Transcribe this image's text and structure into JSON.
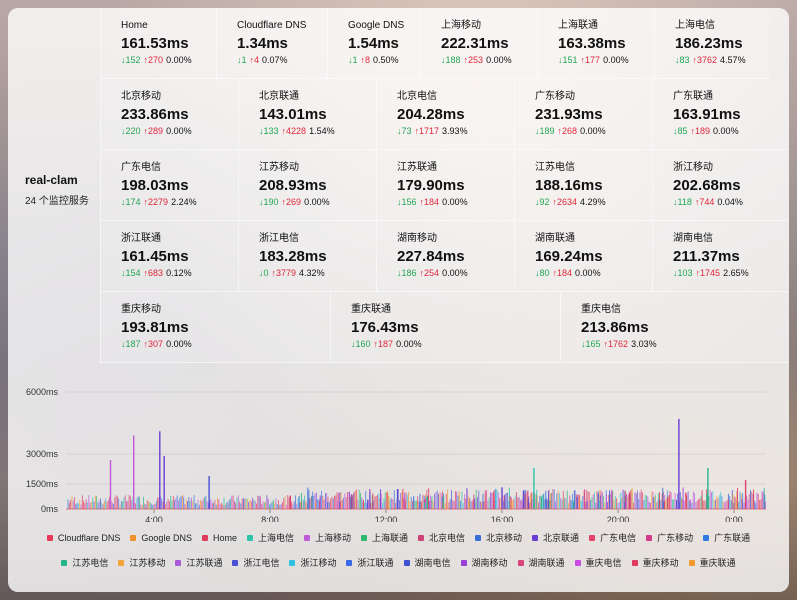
{
  "side": {
    "name": "real-clam",
    "count": "24 个监控服务"
  },
  "rows": [
    [
      {
        "label": "Home",
        "value": "161.53ms",
        "down": "↓152",
        "up": "↑270",
        "loss": "0.00%"
      },
      {
        "label": "Cloudflare DNS",
        "value": "1.34ms",
        "down": "↓1",
        "up": "↑4",
        "loss": "0.07%"
      },
      {
        "label": "Google DNS",
        "value": "1.54ms",
        "down": "↓1",
        "up": "↑8",
        "loss": "0.50%"
      },
      {
        "label": "上海移动",
        "value": "222.31ms",
        "down": "↓188",
        "up": "↑253",
        "loss": "0.00%"
      },
      {
        "label": "上海联通",
        "value": "163.38ms",
        "down": "↓151",
        "up": "↑177",
        "loss": "0.00%"
      },
      {
        "label": "上海电信",
        "value": "186.23ms",
        "down": "↓83",
        "up": "↑3762",
        "loss": "4.57%"
      }
    ],
    [
      {
        "label": "北京移动",
        "value": "233.86ms",
        "down": "↓220",
        "up": "↑289",
        "loss": "0.00%"
      },
      {
        "label": "北京联通",
        "value": "143.01ms",
        "down": "↓133",
        "up": "↑4228",
        "loss": "1.54%"
      },
      {
        "label": "北京电信",
        "value": "204.28ms",
        "down": "↓73",
        "up": "↑1717",
        "loss": "3.93%"
      },
      {
        "label": "广东移动",
        "value": "231.93ms",
        "down": "↓189",
        "up": "↑268",
        "loss": "0.00%"
      },
      {
        "label": "广东联通",
        "value": "163.91ms",
        "down": "↓85",
        "up": "↑189",
        "loss": "0.00%"
      }
    ],
    [
      {
        "label": "广东电信",
        "value": "198.03ms",
        "down": "↓174",
        "up": "↑2279",
        "loss": "2.24%"
      },
      {
        "label": "江苏移动",
        "value": "208.93ms",
        "down": "↓190",
        "up": "↑269",
        "loss": "0.00%"
      },
      {
        "label": "江苏联通",
        "value": "179.90ms",
        "down": "↓156",
        "up": "↑184",
        "loss": "0.00%"
      },
      {
        "label": "江苏电信",
        "value": "188.16ms",
        "down": "↓92",
        "up": "↑2634",
        "loss": "4.29%"
      },
      {
        "label": "浙江移动",
        "value": "202.68ms",
        "down": "↓118",
        "up": "↑744",
        "loss": "0.04%"
      }
    ],
    [
      {
        "label": "浙江联通",
        "value": "161.45ms",
        "down": "↓154",
        "up": "↑683",
        "loss": "0.12%"
      },
      {
        "label": "浙江电信",
        "value": "183.28ms",
        "down": "↓0",
        "up": "↑3779",
        "loss": "4.32%"
      },
      {
        "label": "湖南移动",
        "value": "227.84ms",
        "down": "↓186",
        "up": "↑254",
        "loss": "0.00%"
      },
      {
        "label": "湖南联通",
        "value": "169.24ms",
        "down": "↓80",
        "up": "↑184",
        "loss": "0.00%"
      },
      {
        "label": "湖南电信",
        "value": "211.37ms",
        "down": "↓103",
        "up": "↑1745",
        "loss": "2.65%"
      }
    ],
    [
      {
        "label": "重庆移动",
        "value": "193.81ms",
        "down": "↓187",
        "up": "↑307",
        "loss": "0.00%"
      },
      {
        "label": "重庆联通",
        "value": "176.43ms",
        "down": "↓160",
        "up": "↑187",
        "loss": "0.00%"
      },
      {
        "label": "重庆电信",
        "value": "213.86ms",
        "down": "↓165",
        "up": "↑1762",
        "loss": "3.03%"
      }
    ]
  ],
  "chart_data": {
    "type": "line",
    "y_ticks": [
      "6000ms",
      "3000ms",
      "1500ms",
      "0ms"
    ],
    "x_ticks": [
      "4:00",
      "8:00",
      "12:00",
      "16:00",
      "20:00",
      "0:00"
    ],
    "ylim": [
      0,
      6000
    ],
    "grid": true,
    "legend_position": "bottom",
    "series_note": "24 latency series; mostly 0-300ms baseline with spikes",
    "spikes": [
      {
        "t": 2.5,
        "v": 2700,
        "series": "上海移动"
      },
      {
        "t": 3.3,
        "v": 3900,
        "series": "上海移动"
      },
      {
        "t": 4.2,
        "v": 4100,
        "series": "北京联通"
      },
      {
        "t": 4.35,
        "v": 2900,
        "series": "北京联通"
      },
      {
        "t": 5.9,
        "v": 1900,
        "series": "浙江电信"
      },
      {
        "t": 8.7,
        "v": 800,
        "series": "重庆移动"
      },
      {
        "t": 12.4,
        "v": 1200,
        "series": "浙江电信"
      },
      {
        "t": 16.0,
        "v": 1300,
        "series": "北京联通"
      },
      {
        "t": 17.1,
        "v": 2300,
        "series": "上海电信"
      },
      {
        "t": 20.4,
        "v": 1000,
        "series": "北京电信"
      },
      {
        "t": 22.1,
        "v": 4700,
        "series": "北京联通"
      },
      {
        "t": 23.1,
        "v": 2300,
        "series": "江苏电信"
      },
      {
        "t": 24.4,
        "v": 1700,
        "series": "广东电信"
      }
    ]
  },
  "legend": [
    {
      "name": "Cloudflare DNS",
      "color": "#e8385a"
    },
    {
      "name": "Google DNS",
      "color": "#f0902a"
    },
    {
      "name": "Home",
      "color": "#e03b5b"
    },
    {
      "name": "上海电信",
      "color": "#2cc4a8"
    },
    {
      "name": "上海移动",
      "color": "#c05ad8"
    },
    {
      "name": "上海联通",
      "color": "#2eb86e"
    },
    {
      "name": "北京电信",
      "color": "#d0437a"
    },
    {
      "name": "北京移动",
      "color": "#3a6fd8"
    },
    {
      "name": "北京联通",
      "color": "#6a3ed6"
    },
    {
      "name": "广东电信",
      "color": "#e2456a"
    },
    {
      "name": "广东移动",
      "color": "#d43a8a"
    },
    {
      "name": "广东联通",
      "color": "#2d7be0"
    },
    {
      "name": "江苏电信",
      "color": "#26b58a"
    },
    {
      "name": "江苏移动",
      "color": "#f3a33a"
    },
    {
      "name": "江苏联通",
      "color": "#a65ad6"
    },
    {
      "name": "浙江电信",
      "color": "#4b4fd8"
    },
    {
      "name": "浙江移动",
      "color": "#30c0e0"
    },
    {
      "name": "浙江联通",
      "color": "#3a68e8"
    },
    {
      "name": "湖南电信",
      "color": "#3e4fd0"
    },
    {
      "name": "湖南移动",
      "color": "#9a3ed8"
    },
    {
      "name": "湖南联通",
      "color": "#d8457a"
    },
    {
      "name": "重庆电信",
      "color": "#c84ae0"
    },
    {
      "name": "重庆移动",
      "color": "#e03a60"
    },
    {
      "name": "重庆联通",
      "color": "#f09a30"
    }
  ]
}
